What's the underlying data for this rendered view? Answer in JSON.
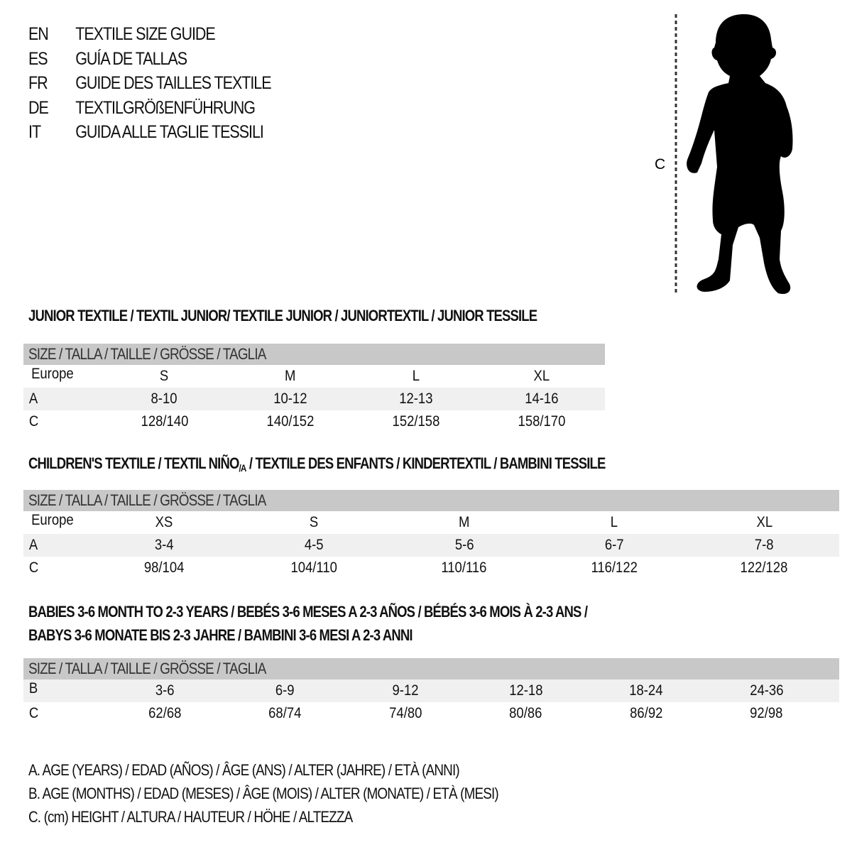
{
  "languages": [
    {
      "code": "EN",
      "title": "TEXTILE SIZE GUIDE"
    },
    {
      "code": "ES",
      "title": "GUÍA DE TALLAS"
    },
    {
      "code": "FR",
      "title": "GUIDE DES TAILLES TEXTILE"
    },
    {
      "code": "DE",
      "title": "TEXTILGRÖßENFÜHRUNG"
    },
    {
      "code": "IT",
      "title": "GUIDA ALLE TAGLIE TESSILI"
    }
  ],
  "figure": {
    "measure_label": "C",
    "icon": "child-silhouette"
  },
  "size_band": "SIZE / TALLA / TAILLE / GRÖSSE / TAGLIA",
  "junior": {
    "heading": "JUNIOR TEXTILE / TEXTIL JUNIOR/ TEXTILE JUNIOR / JUNIORTEXTIL / JUNIOR TESSILE",
    "rows": [
      {
        "label": "Europe",
        "values": [
          "S",
          "M",
          "L",
          "XL"
        ]
      },
      {
        "label": "A",
        "values": [
          "8-10",
          "10-12",
          "12-13",
          "14-16"
        ]
      },
      {
        "label": "C",
        "values": [
          "128/140",
          "140/152",
          "152/158",
          "158/170"
        ]
      }
    ]
  },
  "children": {
    "heading_pre": "CHILDREN'S TEXTILE / TEXTIL NIÑO",
    "heading_sub": "/A",
    "heading_post": " / TEXTILE DES ENFANTS / KINDERTEXTIL / BAMBINI TESSILE",
    "rows": [
      {
        "label": "Europe",
        "values": [
          "XS",
          "S",
          "M",
          "L",
          "XL"
        ]
      },
      {
        "label": "A",
        "values": [
          "3-4",
          "4-5",
          "5-6",
          "6-7",
          "7-8"
        ]
      },
      {
        "label": "C",
        "values": [
          "98/104",
          "104/110",
          "110/116",
          "116/122",
          "122/128"
        ]
      }
    ]
  },
  "babies": {
    "heading_line1": "BABIES 3-6 MONTH TO 2-3 YEARS / BEBÉS 3-6 MESES A 2-3 AÑOS / BÉBÉS 3-6 MOIS À 2-3 ANS /",
    "heading_line2": "BABYS 3-6 MONATE BIS 2-3 JAHRE / BAMBINI 3-6 MESI A 2-3 ANNI",
    "rows": [
      {
        "label": "B",
        "values": [
          "3-6",
          "6-9",
          "9-12",
          "12-18",
          "18-24",
          "24-36"
        ]
      },
      {
        "label": "C",
        "values": [
          "62/68",
          "68/74",
          "74/80",
          "80/86",
          "86/92",
          "92/98"
        ]
      }
    ]
  },
  "legend": [
    "A. AGE (YEARS) / EDAD (AÑOS) / ÂGE (ANS) / ALTER (JAHRE) / ETÀ (ANNI)",
    "B. AGE (MONTHS) / EDAD (MESES) / ÂGE (MOIS) / ALTER (MONATE) / ETÀ (MESI)",
    "C. (cm) HEIGHT / ALTURA / HAUTEUR / HÖHE / ALTEZZA"
  ]
}
